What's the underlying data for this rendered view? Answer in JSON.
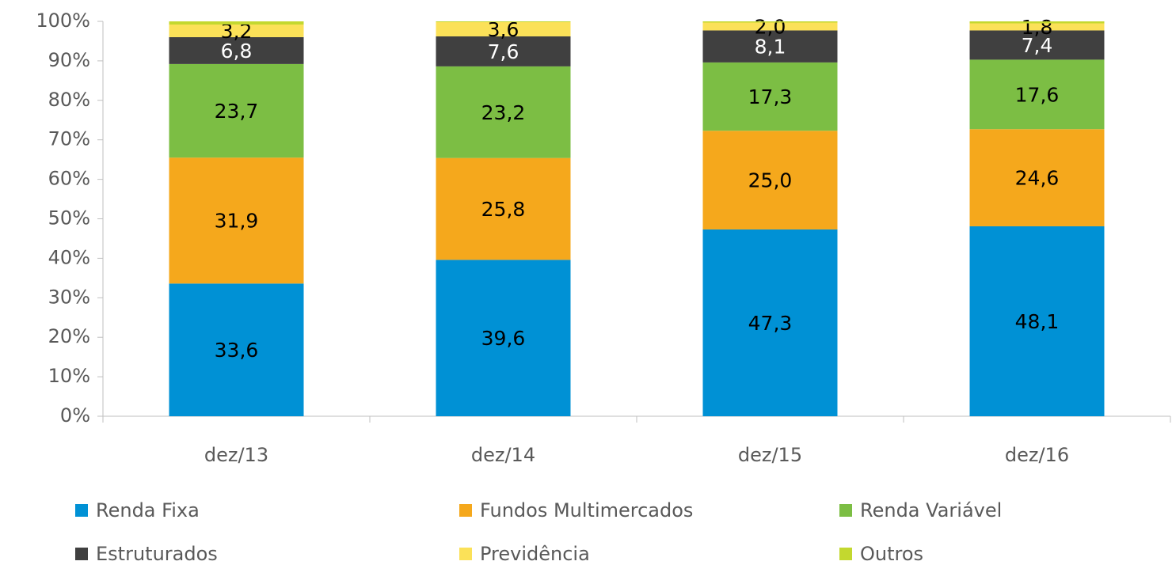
{
  "chart_data": {
    "type": "stacked_bar",
    "categories": [
      "dez/13",
      "dez/14",
      "dez/15",
      "dez/16"
    ],
    "series": [
      {
        "name": "Renda Fixa",
        "color": "#0091d5",
        "values": [
          33.6,
          39.6,
          47.3,
          48.1
        ],
        "value_labels": [
          "33,6",
          "39,6",
          "47,3",
          "48,1"
        ]
      },
      {
        "name": "Fundos Multimercados",
        "color": "#f5a81c",
        "values": [
          31.9,
          25.8,
          25.0,
          24.6
        ],
        "value_labels": [
          "31,9",
          "25,8",
          "25,0",
          "24,6"
        ]
      },
      {
        "name": "Renda Variável",
        "color": "#7cbe44",
        "values": [
          23.7,
          23.2,
          17.3,
          17.6
        ],
        "value_labels": [
          "23,7",
          "23,2",
          "17,3",
          "17,6"
        ]
      },
      {
        "name": "Estruturados",
        "color": "#404040",
        "values": [
          6.8,
          7.6,
          8.1,
          7.4
        ],
        "value_labels": [
          "6,8",
          "7,6",
          "8,1",
          "7,4"
        ]
      },
      {
        "name": "Previdência",
        "color": "#fbe158",
        "values": [
          3.2,
          3.6,
          2.0,
          1.8
        ],
        "value_labels": [
          "3,2",
          "3,6",
          "2,0",
          "1,8"
        ]
      },
      {
        "name": "Outros",
        "color": "#c3d82f",
        "values": [
          0.8,
          0.2,
          0.3,
          0.5
        ]
      }
    ],
    "ylim": [
      0,
      100
    ],
    "yticks": [
      {
        "value": 0,
        "label": "0%"
      },
      {
        "value": 10,
        "label": "10%"
      },
      {
        "value": 20,
        "label": "20%"
      },
      {
        "value": 30,
        "label": "30%"
      },
      {
        "value": 40,
        "label": "40%"
      },
      {
        "value": 50,
        "label": "50%"
      },
      {
        "value": 60,
        "label": "60%"
      },
      {
        "value": 70,
        "label": "70%"
      },
      {
        "value": 80,
        "label": "80%"
      },
      {
        "value": 90,
        "label": "90%"
      },
      {
        "value": 100,
        "label": "100%"
      }
    ],
    "grid": false,
    "legend": "bottom"
  }
}
